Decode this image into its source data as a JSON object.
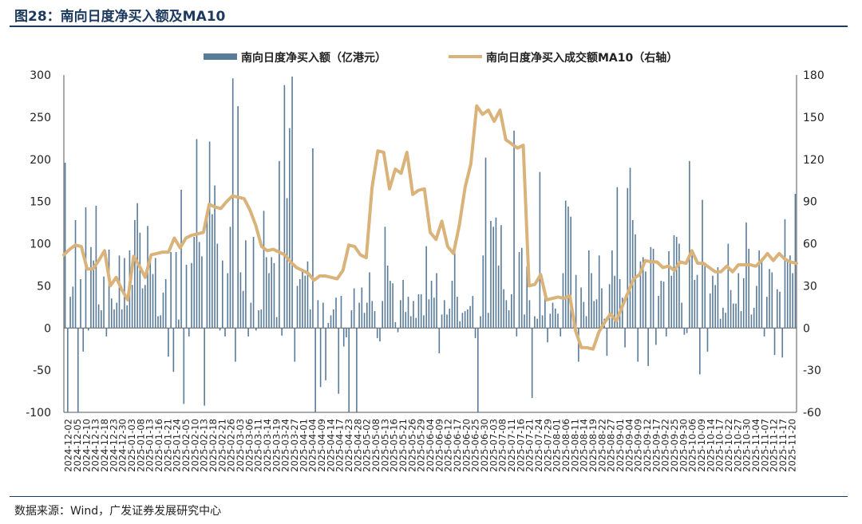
{
  "title": "图28：南向日度净买入额及MA10",
  "source": "数据来源：Wind，广发证券发展研究中心",
  "colors": {
    "bar": "#5b7c99",
    "line": "#d9b37a",
    "accent": "#1c3a5e"
  },
  "chart_data": {
    "type": "bar+line",
    "title": "南向日度净买入额及MA10",
    "legend": [
      "南向日度净买入额（亿港元）",
      "南向日度净买入成交额MA10（右轴）"
    ],
    "legend_position": "top-center",
    "y_left": {
      "min": -100,
      "max": 300,
      "ticks": [
        -100,
        -50,
        0,
        50,
        100,
        150,
        200,
        250,
        300
      ]
    },
    "y_right": {
      "min": -60,
      "max": 180,
      "ticks": [
        -60,
        -30,
        0,
        30,
        60,
        90,
        120,
        150,
        180
      ]
    },
    "x_tick_labels": [
      "2024-12-02",
      "2024-12-05",
      "2024-12-10",
      "2024-12-13",
      "2024-12-18",
      "2024-12-23",
      "2024-12-30",
      "2025-01-03",
      "2025-01-08",
      "2025-01-13",
      "2025-01-16",
      "2025-01-21",
      "2025-01-24",
      "2025-02-05",
      "2025-02-10",
      "2025-02-13",
      "2025-02-18",
      "2025-02-21",
      "2025-02-26",
      "2025-03-03",
      "2025-03-06",
      "2025-03-11",
      "2025-03-14",
      "2025-03-19",
      "2025-03-24",
      "2025-03-27",
      "2025-04-01",
      "2025-04-04",
      "2025-04-09",
      "2025-04-14",
      "2025-04-17",
      "2025-04-23",
      "2025-04-28",
      "2025-05-02",
      "2025-05-08",
      "2025-05-13",
      "2025-05-16",
      "2025-05-21",
      "2025-05-26",
      "2025-05-29",
      "2025-06-04",
      "2025-06-09",
      "2025-06-12",
      "2025-06-17",
      "2025-06-20",
      "2025-06-25",
      "2025-06-30",
      "2025-07-03",
      "2025-07-08",
      "2025-07-11",
      "2025-07-16",
      "2025-07-21",
      "2025-07-24",
      "2025-07-29",
      "2025-08-01",
      "2025-08-06",
      "2025-08-11",
      "2025-08-14",
      "2025-08-19",
      "2025-08-22",
      "2025-08-27",
      "2025-09-01",
      "2025-09-04",
      "2025-09-09",
      "2025-09-12",
      "2025-09-17",
      "2025-09-22",
      "2025-09-25",
      "2025-09-30",
      "2025-10-06",
      "2025-10-09",
      "2025-10-14",
      "2025-10-17",
      "2025-10-22",
      "2025-10-27",
      "2025-10-30",
      "2025-11-04",
      "2025-11-07",
      "2025-11-12",
      "2025-11-17",
      "2025-11-20"
    ],
    "series": [
      {
        "name": "南向日度净买入额（亿港元）",
        "type": "bar",
        "axis": "left",
        "values": [
          196,
          -100,
          37,
          49,
          128,
          -100,
          58,
          -28,
          143,
          -3,
          96,
          80,
          145,
          28,
          21,
          61,
          -10,
          93,
          35,
          22,
          30,
          86,
          22,
          83,
          27,
          92,
          51,
          128,
          148,
          113,
          47,
          51,
          121,
          82,
          64,
          83,
          14,
          15,
          42,
          58,
          -34,
          90,
          -52,
          90,
          10,
          164,
          -90,
          75,
          -10,
          77,
          108,
          224,
          102,
          85,
          -92,
          138,
          221,
          135,
          169,
          100,
          -3,
          80,
          -10,
          65,
          120,
          296,
          -40,
          263,
          66,
          44,
          104,
          -10,
          30,
          108,
          -3,
          21,
          22,
          139,
          84,
          65,
          84,
          77,
          13,
          198,
          -9,
          288,
          154,
          237,
          298,
          -40,
          50,
          58,
          70,
          62,
          79,
          22,
          213,
          -100,
          33,
          -70,
          30,
          -62,
          6,
          15,
          22,
          36,
          -78,
          38,
          -22,
          -11,
          -100,
          21,
          47,
          -100,
          30,
          48,
          18,
          30,
          66,
          32,
          20,
          -12,
          -16,
          32,
          120,
          74,
          56,
          53,
          7,
          -5,
          33,
          57,
          19,
          37,
          14,
          32,
          12,
          40,
          40,
          15,
          97,
          34,
          56,
          36,
          65,
          -30,
          16,
          33,
          16,
          23,
          56,
          103,
          37,
          8,
          18,
          20,
          22,
          26,
          38,
          -12,
          -100,
          14,
          86,
          202,
          18,
          127,
          120,
          131,
          74,
          122,
          46,
          33,
          21,
          40,
          234,
          -10,
          90,
          95,
          16,
          73,
          33,
          -83,
          14,
          11,
          185,
          15,
          44,
          -17,
          17,
          30,
          23,
          17,
          -10,
          65,
          151,
          144,
          132,
          18,
          63,
          -40,
          48,
          31,
          14,
          92,
          65,
          32,
          34,
          86,
          47,
          11,
          -33,
          52,
          92,
          62,
          167,
          58,
          36,
          -23,
          166,
          190,
          128,
          111,
          -40,
          79,
          84,
          67,
          -45,
          96,
          94,
          -20,
          38,
          56,
          55,
          -10,
          91,
          62,
          110,
          108,
          100,
          30,
          -8,
          -6,
          198,
          86,
          57,
          63,
          -55,
          152,
          75,
          -28,
          41,
          62,
          51,
          72,
          11,
          24,
          18,
          100,
          45,
          29,
          29,
          65,
          20,
          59,
          125,
          94,
          16,
          24,
          50,
          92,
          79,
          -10,
          37,
          70,
          66,
          -32,
          46,
          43,
          -35,
          129,
          79,
          86,
          65,
          159
        ]
      },
      {
        "name": "南向日度净买入成交额MA10（右轴）",
        "type": "line",
        "axis": "right",
        "values": [
          52,
          56,
          59,
          58,
          42,
          42,
          48,
          55,
          30,
          36,
          27,
          20,
          51,
          44,
          36,
          52,
          53,
          54,
          54,
          64,
          57,
          64,
          66,
          67,
          68,
          88,
          86,
          85,
          90,
          94,
          93,
          92,
          84,
          73,
          58,
          55,
          56,
          54,
          52,
          47,
          43,
          41,
          39,
          34,
          37,
          37,
          36,
          35,
          41,
          59,
          58,
          52,
          50,
          100,
          126,
          125,
          99,
          113,
          110,
          125,
          95,
          98,
          99,
          68,
          63,
          76,
          58,
          53,
          73,
          100,
          117,
          158,
          152,
          155,
          147,
          155,
          134,
          131,
          128,
          130,
          30,
          31,
          38,
          20,
          21,
          22,
          21,
          23,
          -2,
          -14,
          -14,
          -15,
          -3,
          4,
          10,
          5,
          15,
          25,
          35,
          38,
          48,
          47,
          47,
          43,
          44,
          41,
          47,
          46,
          55,
          46,
          46,
          43,
          40,
          40,
          44,
          40,
          45,
          45,
          45,
          44,
          48,
          53,
          48,
          53,
          49,
          47,
          46
        ]
      }
    ]
  }
}
